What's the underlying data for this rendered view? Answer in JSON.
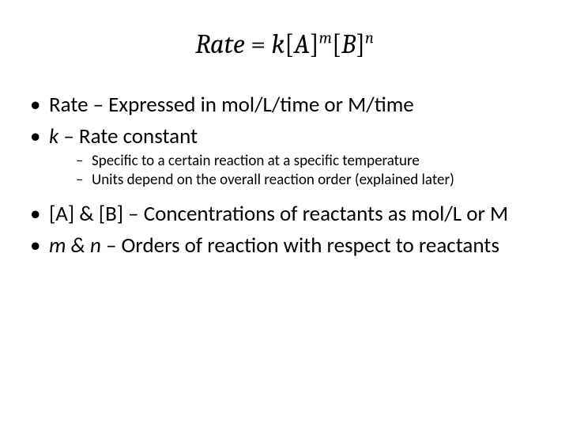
{
  "equation": {
    "lhs": "Rate",
    "eq": " = ",
    "k": "k",
    "lbrack": "[",
    "A": "A",
    "rbrack": "]",
    "m": "m",
    "B": "B",
    "n": "n"
  },
  "bullets": {
    "b1_term": "Rate",
    "b1_rest": " – Expressed in mol/L/time or M/time",
    "b2_term": "k",
    "b2_rest": " – Rate constant",
    "b2_sub1": "Specific to a certain reaction at a specific temperature",
    "b2_sub2": "Units depend on the overall reaction order (explained later)",
    "b3_term": "[A] & [B]",
    "b3_rest": " – Concentrations of reactants as mol/L or M",
    "b4_term": "m & n",
    "b4_rest": " – Orders of reaction with respect to reactants"
  },
  "style": {
    "background_color": "#ffffff",
    "text_color": "#000000",
    "equation_fontsize": 34,
    "main_bullet_fontsize": 27,
    "sub_bullet_fontsize": 19,
    "font_family_body": "Calibri",
    "font_family_eq": "Cambria"
  }
}
